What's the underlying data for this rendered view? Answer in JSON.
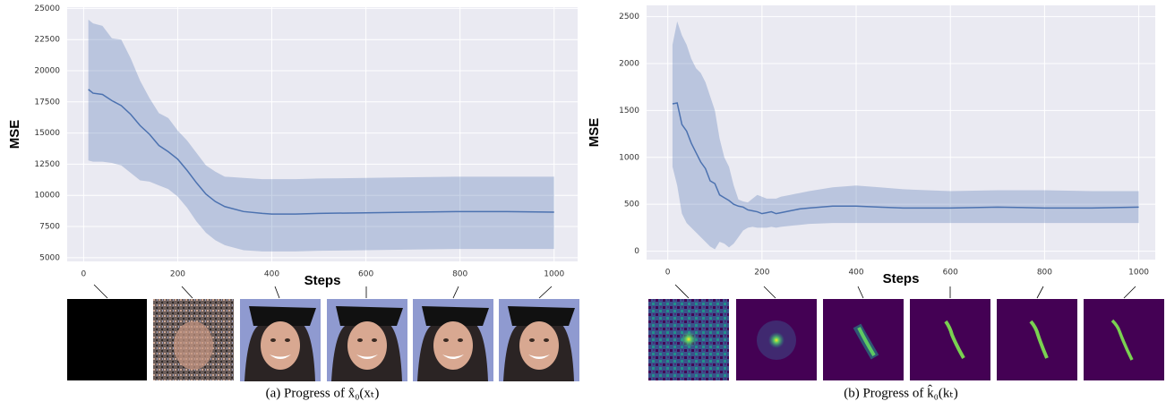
{
  "chart_data": [
    {
      "type": "line",
      "xlabel": "Steps",
      "ylabel": "MSE",
      "caption": "(a) Progress of x̂₀(xₜ)",
      "x": [
        10,
        20,
        40,
        60,
        80,
        100,
        120,
        140,
        160,
        180,
        200,
        220,
        240,
        260,
        280,
        300,
        340,
        380,
        400,
        450,
        500,
        600,
        700,
        800,
        900,
        1000
      ],
      "series": [
        {
          "color": "#4c72b0",
          "values": [
            18500,
            18200,
            18100,
            17600,
            17200,
            16500,
            15600,
            14900,
            14000,
            13500,
            12900,
            12000,
            11000,
            10100,
            9500,
            9100,
            8700,
            8550,
            8500,
            8500,
            8550,
            8600,
            8650,
            8700,
            8700,
            8650
          ],
          "upper": [
            24100,
            23800,
            23600,
            22600,
            22500,
            21000,
            19200,
            17800,
            16600,
            16200,
            15200,
            14400,
            13400,
            12400,
            11900,
            11500,
            11400,
            11300,
            11300,
            11300,
            11350,
            11400,
            11450,
            11500,
            11500,
            11500
          ],
          "lower": [
            12800,
            12700,
            12700,
            12600,
            12400,
            11800,
            11200,
            11100,
            10800,
            10500,
            9900,
            9000,
            7900,
            7000,
            6400,
            6000,
            5600,
            5500,
            5500,
            5500,
            5550,
            5600,
            5650,
            5700,
            5700,
            5700
          ]
        }
      ],
      "xlim": [
        -35,
        1050
      ],
      "ylim": [
        4700,
        25100
      ],
      "xticks": [
        0,
        200,
        400,
        600,
        800,
        1000
      ],
      "yticks": [
        5000,
        7500,
        10000,
        12500,
        15000,
        17500,
        20000,
        22500,
        25000
      ],
      "grid": true
    },
    {
      "type": "line",
      "xlabel": "Steps",
      "ylabel": "MSE",
      "caption": "(b) Progress of k̂₀(kₜ)",
      "x": [
        10,
        20,
        30,
        40,
        50,
        60,
        70,
        80,
        90,
        100,
        110,
        120,
        130,
        140,
        150,
        160,
        170,
        180,
        190,
        200,
        210,
        220,
        230,
        240,
        260,
        280,
        300,
        350,
        400,
        450,
        500,
        600,
        700,
        800,
        900,
        1000
      ],
      "series": [
        {
          "color": "#4c72b0",
          "values": [
            1570,
            1580,
            1350,
            1280,
            1150,
            1050,
            950,
            880,
            750,
            720,
            600,
            570,
            540,
            500,
            480,
            470,
            440,
            430,
            420,
            400,
            410,
            420,
            400,
            410,
            430,
            450,
            460,
            480,
            480,
            470,
            460,
            460,
            470,
            460,
            460,
            470
          ],
          "upper": [
            2200,
            2450,
            2300,
            2200,
            2050,
            1950,
            1900,
            1800,
            1650,
            1500,
            1200,
            1000,
            900,
            700,
            550,
            530,
            520,
            560,
            600,
            580,
            560,
            560,
            560,
            580,
            600,
            620,
            640,
            680,
            700,
            680,
            660,
            640,
            650,
            650,
            640,
            640
          ],
          "lower": [
            900,
            700,
            400,
            300,
            250,
            200,
            150,
            100,
            50,
            20,
            100,
            80,
            40,
            80,
            150,
            220,
            250,
            260,
            250,
            250,
            250,
            260,
            250,
            260,
            270,
            280,
            290,
            300,
            300,
            300,
            300,
            300,
            300,
            300,
            300,
            300
          ]
        }
      ],
      "xlim": [
        -45,
        1035
      ],
      "ylim": [
        -90,
        2620
      ],
      "xticks": [
        0,
        200,
        400,
        600,
        800,
        1000
      ],
      "yticks": [
        0,
        500,
        1000,
        1500,
        2000,
        2500
      ],
      "grid": true
    }
  ]
}
